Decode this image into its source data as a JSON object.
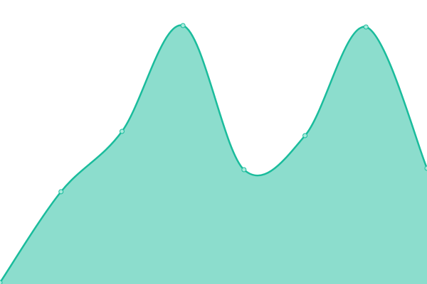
{
  "chart_data": {
    "type": "area",
    "categories": [
      null,
      null,
      null,
      null,
      null,
      null,
      null,
      null
    ],
    "series": [
      {
        "color": "#1abc9c",
        "values": [
          2,
          130,
          215,
          364,
          161,
          209,
          362,
          163
        ]
      }
    ],
    "ylim": [
      0,
      400
    ]
  }
}
